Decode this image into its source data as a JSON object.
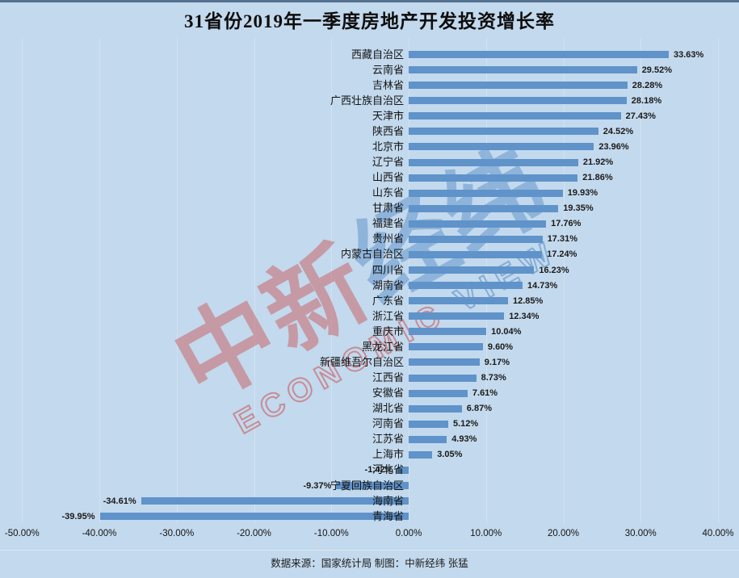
{
  "title": "31省份2019年一季度房地产开发投资增长率",
  "footer": "数据来源：国家统计局 制图：中新经纬 张猛",
  "watermark": {
    "cn_red": "中新",
    "cn_blue": "经纬",
    "en_red": "ECONOMIC",
    "en_blue": "VIEW"
  },
  "colors": {
    "background": "#c3d9ed",
    "bar": "#5f93c9",
    "gridline": "#d3e2f1",
    "top_border": "#53718f",
    "watermark_red": "#c94f4f",
    "watermark_blue": "#4f88c6"
  },
  "chart_data": {
    "type": "bar",
    "orientation": "horizontal",
    "title": "31省份2019年一季度房地产开发投资增长率",
    "categories": [
      "西藏自治区",
      "云南省",
      "吉林省",
      "广西壮族自治区",
      "天津市",
      "陕西省",
      "北京市",
      "辽宁省",
      "山西省",
      "山东省",
      "甘肃省",
      "福建省",
      "贵州省",
      "内蒙古自治区",
      "四川省",
      "湖南省",
      "广东省",
      "浙江省",
      "重庆市",
      "黑龙江省",
      "新疆维吾尔自治区",
      "江西省",
      "安徽省",
      "湖北省",
      "河南省",
      "江苏省",
      "上海市",
      "河北省",
      "宁夏回族自治区",
      "海南省",
      "青海省"
    ],
    "values": [
      33.63,
      29.52,
      28.28,
      28.18,
      27.43,
      24.52,
      23.96,
      21.92,
      21.86,
      19.93,
      19.35,
      17.76,
      17.31,
      17.24,
      16.23,
      14.73,
      12.85,
      12.34,
      10.04,
      9.6,
      9.17,
      8.73,
      7.61,
      6.87,
      5.12,
      4.93,
      3.05,
      -1.42,
      -9.37,
      -34.61,
      -39.95
    ],
    "value_suffix": "%",
    "x_ticks": [
      "-50.00%",
      "-40.00%",
      "-30.00%",
      "-20.00%",
      "-10.00%",
      "0.00%",
      "10.00%",
      "20.00%",
      "30.00%",
      "40.00%"
    ],
    "x_tick_values": [
      -50,
      -40,
      -30,
      -20,
      -10,
      0,
      10,
      20,
      30,
      40
    ],
    "xlim": [
      -50,
      40
    ],
    "grid": true,
    "legend": false,
    "source_note": "数据来源：国家统计局 制图：中新经纬 张猛"
  }
}
